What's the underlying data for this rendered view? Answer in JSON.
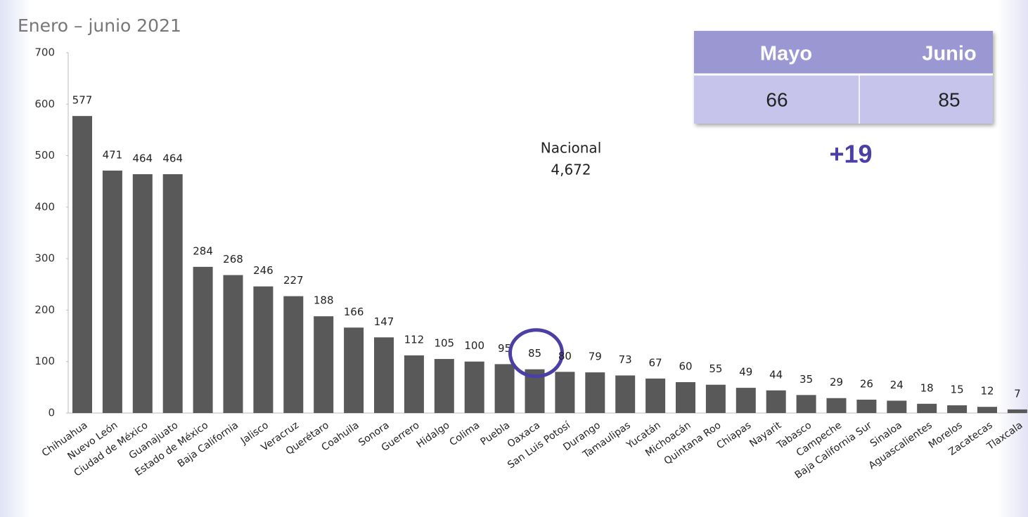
{
  "chart_data": {
    "type": "bar",
    "subtitle": "Enero – junio 2021",
    "categories": [
      "Chihuahua",
      "Nuevo León",
      "Ciudad de México",
      "Guanajuato",
      "Estado de México",
      "Baja California",
      "Jalisco",
      "Veracruz",
      "Querétaro",
      "Coahuila",
      "Sonora",
      "Guerrero",
      "Hidalgo",
      "Colima",
      "Puebla",
      "Oaxaca",
      "San Luis Potosí",
      "Durango",
      "Tamaulipas",
      "Yucatán",
      "Michoacán",
      "Quintana Roo",
      "Chiapas",
      "Nayarit",
      "Tabasco",
      "Campeche",
      "Baja California Sur",
      "Sinaloa",
      "Aguascalientes",
      "Morelos",
      "Zacatecas",
      "Tlaxcala"
    ],
    "values": [
      577,
      471,
      464,
      464,
      284,
      268,
      246,
      227,
      188,
      166,
      147,
      112,
      105,
      100,
      95,
      85,
      80,
      79,
      73,
      67,
      60,
      55,
      49,
      44,
      35,
      29,
      26,
      24,
      18,
      15,
      12,
      7
    ],
    "color": "#595959",
    "ylim": [
      0,
      700
    ],
    "yticks": [
      0,
      100,
      200,
      300,
      400,
      500,
      600,
      700
    ],
    "annotations": [
      "Nacional",
      "4,672"
    ],
    "highlight": "Oaxaca"
  },
  "table": {
    "headers": [
      "Mayo",
      "Junio"
    ],
    "rows": [
      [
        "66",
        "85"
      ]
    ],
    "difference": "+19"
  }
}
